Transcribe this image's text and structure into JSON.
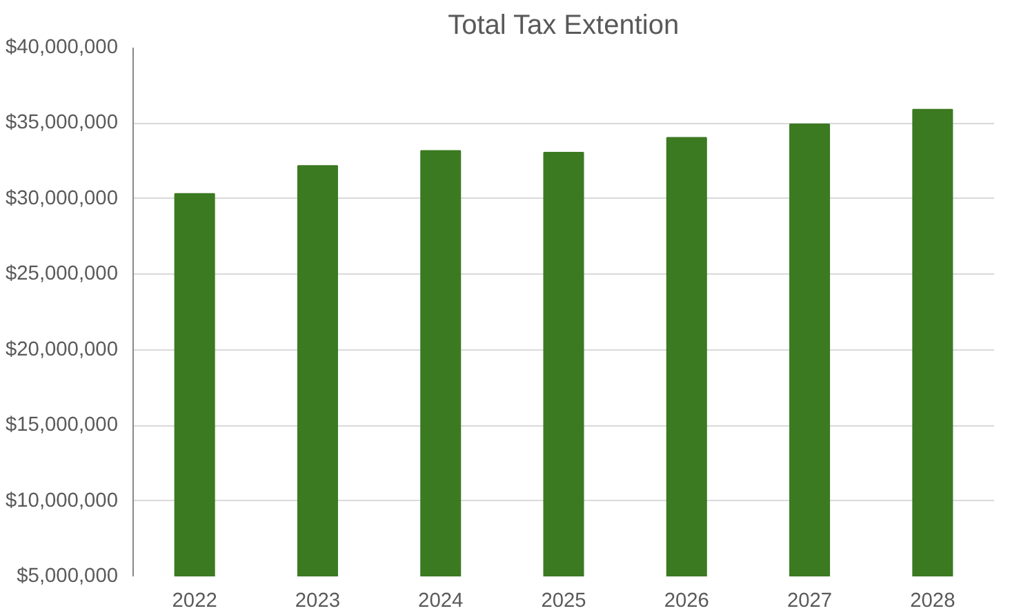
{
  "chart_data": {
    "type": "bar",
    "title": "Total Tax Extention",
    "categories": [
      "2022",
      "2023",
      "2024",
      "2025",
      "2026",
      "2027",
      "2028"
    ],
    "values": [
      30330000,
      32180000,
      33170000,
      33060000,
      34040000,
      34930000,
      35900000
    ],
    "color": "#3c7a22",
    "ylim": [
      5000000,
      40000000
    ],
    "yticks": [
      {
        "value": 5000000,
        "label": "$5,000,000"
      },
      {
        "value": 10000000,
        "label": "$10,000,000"
      },
      {
        "value": 15000000,
        "label": "$15,000,000"
      },
      {
        "value": 20000000,
        "label": "$20,000,000"
      },
      {
        "value": 25000000,
        "label": "$25,000,000"
      },
      {
        "value": 30000000,
        "label": "$30,000,000"
      },
      {
        "value": 35000000,
        "label": "$35,000,000"
      },
      {
        "value": 40000000,
        "label": "$40,000,000"
      }
    ],
    "grid": "y"
  }
}
